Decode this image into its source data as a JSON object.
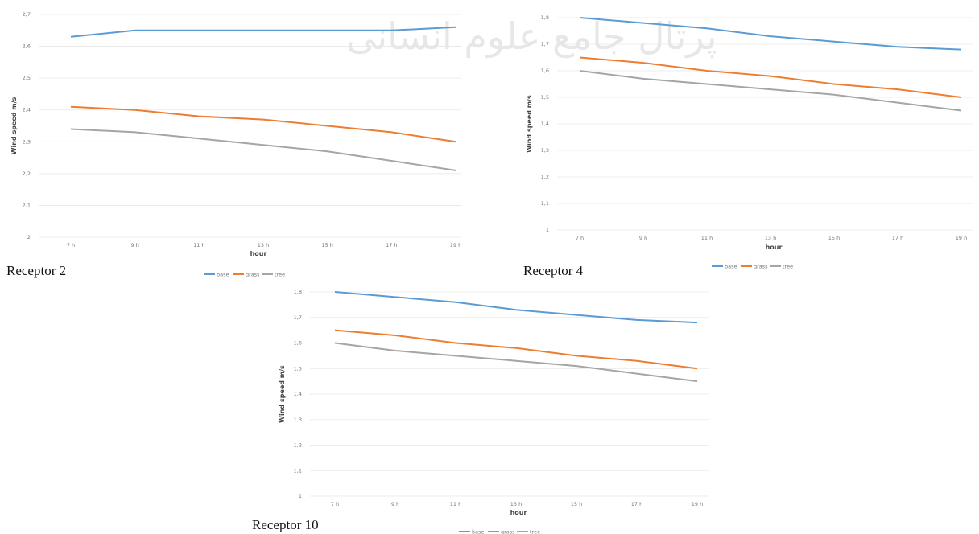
{
  "watermark_text": "پرتال جامع علوم انسانی",
  "captions": [
    "Receptor 2",
    "Receptor 4",
    "Receptor 10"
  ],
  "series_colors": {
    "base": "#5b9bd5",
    "grass": "#ed7d31",
    "tree": "#a5a5a5"
  },
  "chart_data": [
    {
      "type": "line",
      "caption": "Receptor 2",
      "xlabel": "hour",
      "ylabel": "Wind speed m/s",
      "x": [
        "7 h",
        "9 h",
        "11 h",
        "13 h",
        "15 h",
        "17 h",
        "19 h"
      ],
      "yticks": [
        "2",
        "2,1",
        "2,2",
        "2,3",
        "2,4",
        "2,5",
        "2,6",
        "2,7"
      ],
      "ylim": [
        2,
        2.7
      ],
      "grid": true,
      "legend_position": "bottom",
      "series": [
        {
          "name": "base",
          "values": [
            2.63,
            2.65,
            2.65,
            2.65,
            2.65,
            2.65,
            2.66
          ]
        },
        {
          "name": "grass",
          "values": [
            2.41,
            2.4,
            2.38,
            2.37,
            2.35,
            2.33,
            2.3
          ]
        },
        {
          "name": "tree",
          "values": [
            2.34,
            2.33,
            2.31,
            2.29,
            2.27,
            2.24,
            2.21
          ]
        }
      ]
    },
    {
      "type": "line",
      "caption": "Receptor 4",
      "xlabel": "hour",
      "ylabel": "Wind speed m/s",
      "x": [
        "7 h",
        "9 h",
        "11 h",
        "13 h",
        "15 h",
        "17 h",
        "19 h"
      ],
      "yticks": [
        "1",
        "1,1",
        "1,2",
        "1,3",
        "1,4",
        "1,5",
        "1,6",
        "1,7",
        "1,8"
      ],
      "ylim": [
        1,
        1.8
      ],
      "grid": true,
      "legend_position": "bottom",
      "series": [
        {
          "name": "base",
          "values": [
            1.8,
            1.78,
            1.76,
            1.73,
            1.71,
            1.69,
            1.68
          ]
        },
        {
          "name": "grass",
          "values": [
            1.65,
            1.63,
            1.6,
            1.58,
            1.55,
            1.53,
            1.5
          ]
        },
        {
          "name": "tree",
          "values": [
            1.6,
            1.57,
            1.55,
            1.53,
            1.51,
            1.48,
            1.45
          ]
        }
      ]
    },
    {
      "type": "line",
      "caption": "Receptor 10",
      "xlabel": "hour",
      "ylabel": "Wind speed m/s",
      "x": [
        "7 h",
        "9 h",
        "11 h",
        "13 h",
        "15 h",
        "17 h",
        "19 h"
      ],
      "yticks": [
        "1",
        "1,1",
        "1,2",
        "1,3",
        "1,4",
        "1,5",
        "1,6",
        "1,7",
        "1,8"
      ],
      "ylim": [
        1,
        1.8
      ],
      "grid": true,
      "legend_position": "bottom",
      "series": [
        {
          "name": "base",
          "values": [
            1.8,
            1.78,
            1.76,
            1.73,
            1.71,
            1.69,
            1.68
          ]
        },
        {
          "name": "grass",
          "values": [
            1.65,
            1.63,
            1.6,
            1.58,
            1.55,
            1.53,
            1.5
          ]
        },
        {
          "name": "tree",
          "values": [
            1.6,
            1.57,
            1.55,
            1.53,
            1.51,
            1.48,
            1.45
          ]
        }
      ]
    }
  ]
}
